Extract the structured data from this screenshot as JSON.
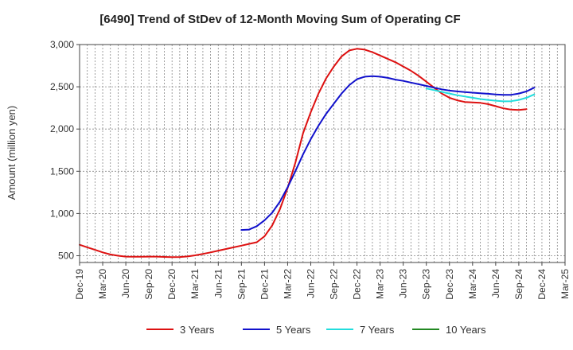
{
  "chart_data": {
    "type": "line",
    "title": "[6490]  Trend of StDev of 12-Month Moving Sum of Operating CF",
    "xlabel": "",
    "ylabel": "Amount (million yen)",
    "ylim": [
      420,
      3000
    ],
    "yticks": [
      500,
      1000,
      1500,
      2000,
      2500,
      3000
    ],
    "ytick_labels": [
      "500",
      "1,000",
      "1,500",
      "2,000",
      "2,500",
      "3,000"
    ],
    "x_start": "Dec-19",
    "x_end": "Mar-25",
    "xtick_labels": [
      "Dec-19",
      "Mar-20",
      "Jun-20",
      "Sep-20",
      "Dec-20",
      "Mar-21",
      "Jun-21",
      "Sep-21",
      "Dec-21",
      "Mar-22",
      "Jun-22",
      "Sep-22",
      "Dec-22",
      "Mar-23",
      "Jun-23",
      "Sep-23",
      "Dec-23",
      "Mar-24",
      "Jun-24",
      "Sep-24",
      "Dec-24",
      "Mar-25"
    ],
    "grid": true,
    "legend_position": "bottom",
    "series": [
      {
        "name": "3 Years",
        "color": "#dd1111",
        "start_index": 0,
        "values": [
          630,
          600,
          570,
          540,
          515,
          500,
          490,
          488,
          488,
          490,
          490,
          486,
          484,
          485,
          492,
          505,
          522,
          540,
          560,
          580,
          600,
          620,
          640,
          660,
          730,
          860,
          1050,
          1300,
          1600,
          1950,
          2200,
          2420,
          2600,
          2740,
          2860,
          2930,
          2950,
          2940,
          2910,
          2870,
          2830,
          2790,
          2740,
          2690,
          2630,
          2560,
          2490,
          2420,
          2370,
          2340,
          2320,
          2315,
          2310,
          2295,
          2270,
          2245,
          2230,
          2225,
          2235
        ]
      },
      {
        "name": "5 Years",
        "color": "#1111cc",
        "start_index": 21,
        "values": [
          805,
          810,
          850,
          920,
          1010,
          1140,
          1310,
          1500,
          1700,
          1880,
          2040,
          2180,
          2300,
          2420,
          2520,
          2590,
          2620,
          2625,
          2620,
          2605,
          2585,
          2570,
          2550,
          2530,
          2510,
          2490,
          2470,
          2455,
          2445,
          2438,
          2430,
          2423,
          2417,
          2410,
          2405,
          2405,
          2420,
          2445,
          2490
        ]
      },
      {
        "name": "7 Years",
        "color": "#22dddd",
        "start_index": 45,
        "values": [
          2480,
          2460,
          2440,
          2420,
          2400,
          2385,
          2370,
          2355,
          2345,
          2335,
          2328,
          2330,
          2345,
          2370,
          2410
        ]
      },
      {
        "name": "10 Years",
        "color": "#228822",
        "start_index": 0,
        "values": []
      }
    ]
  }
}
